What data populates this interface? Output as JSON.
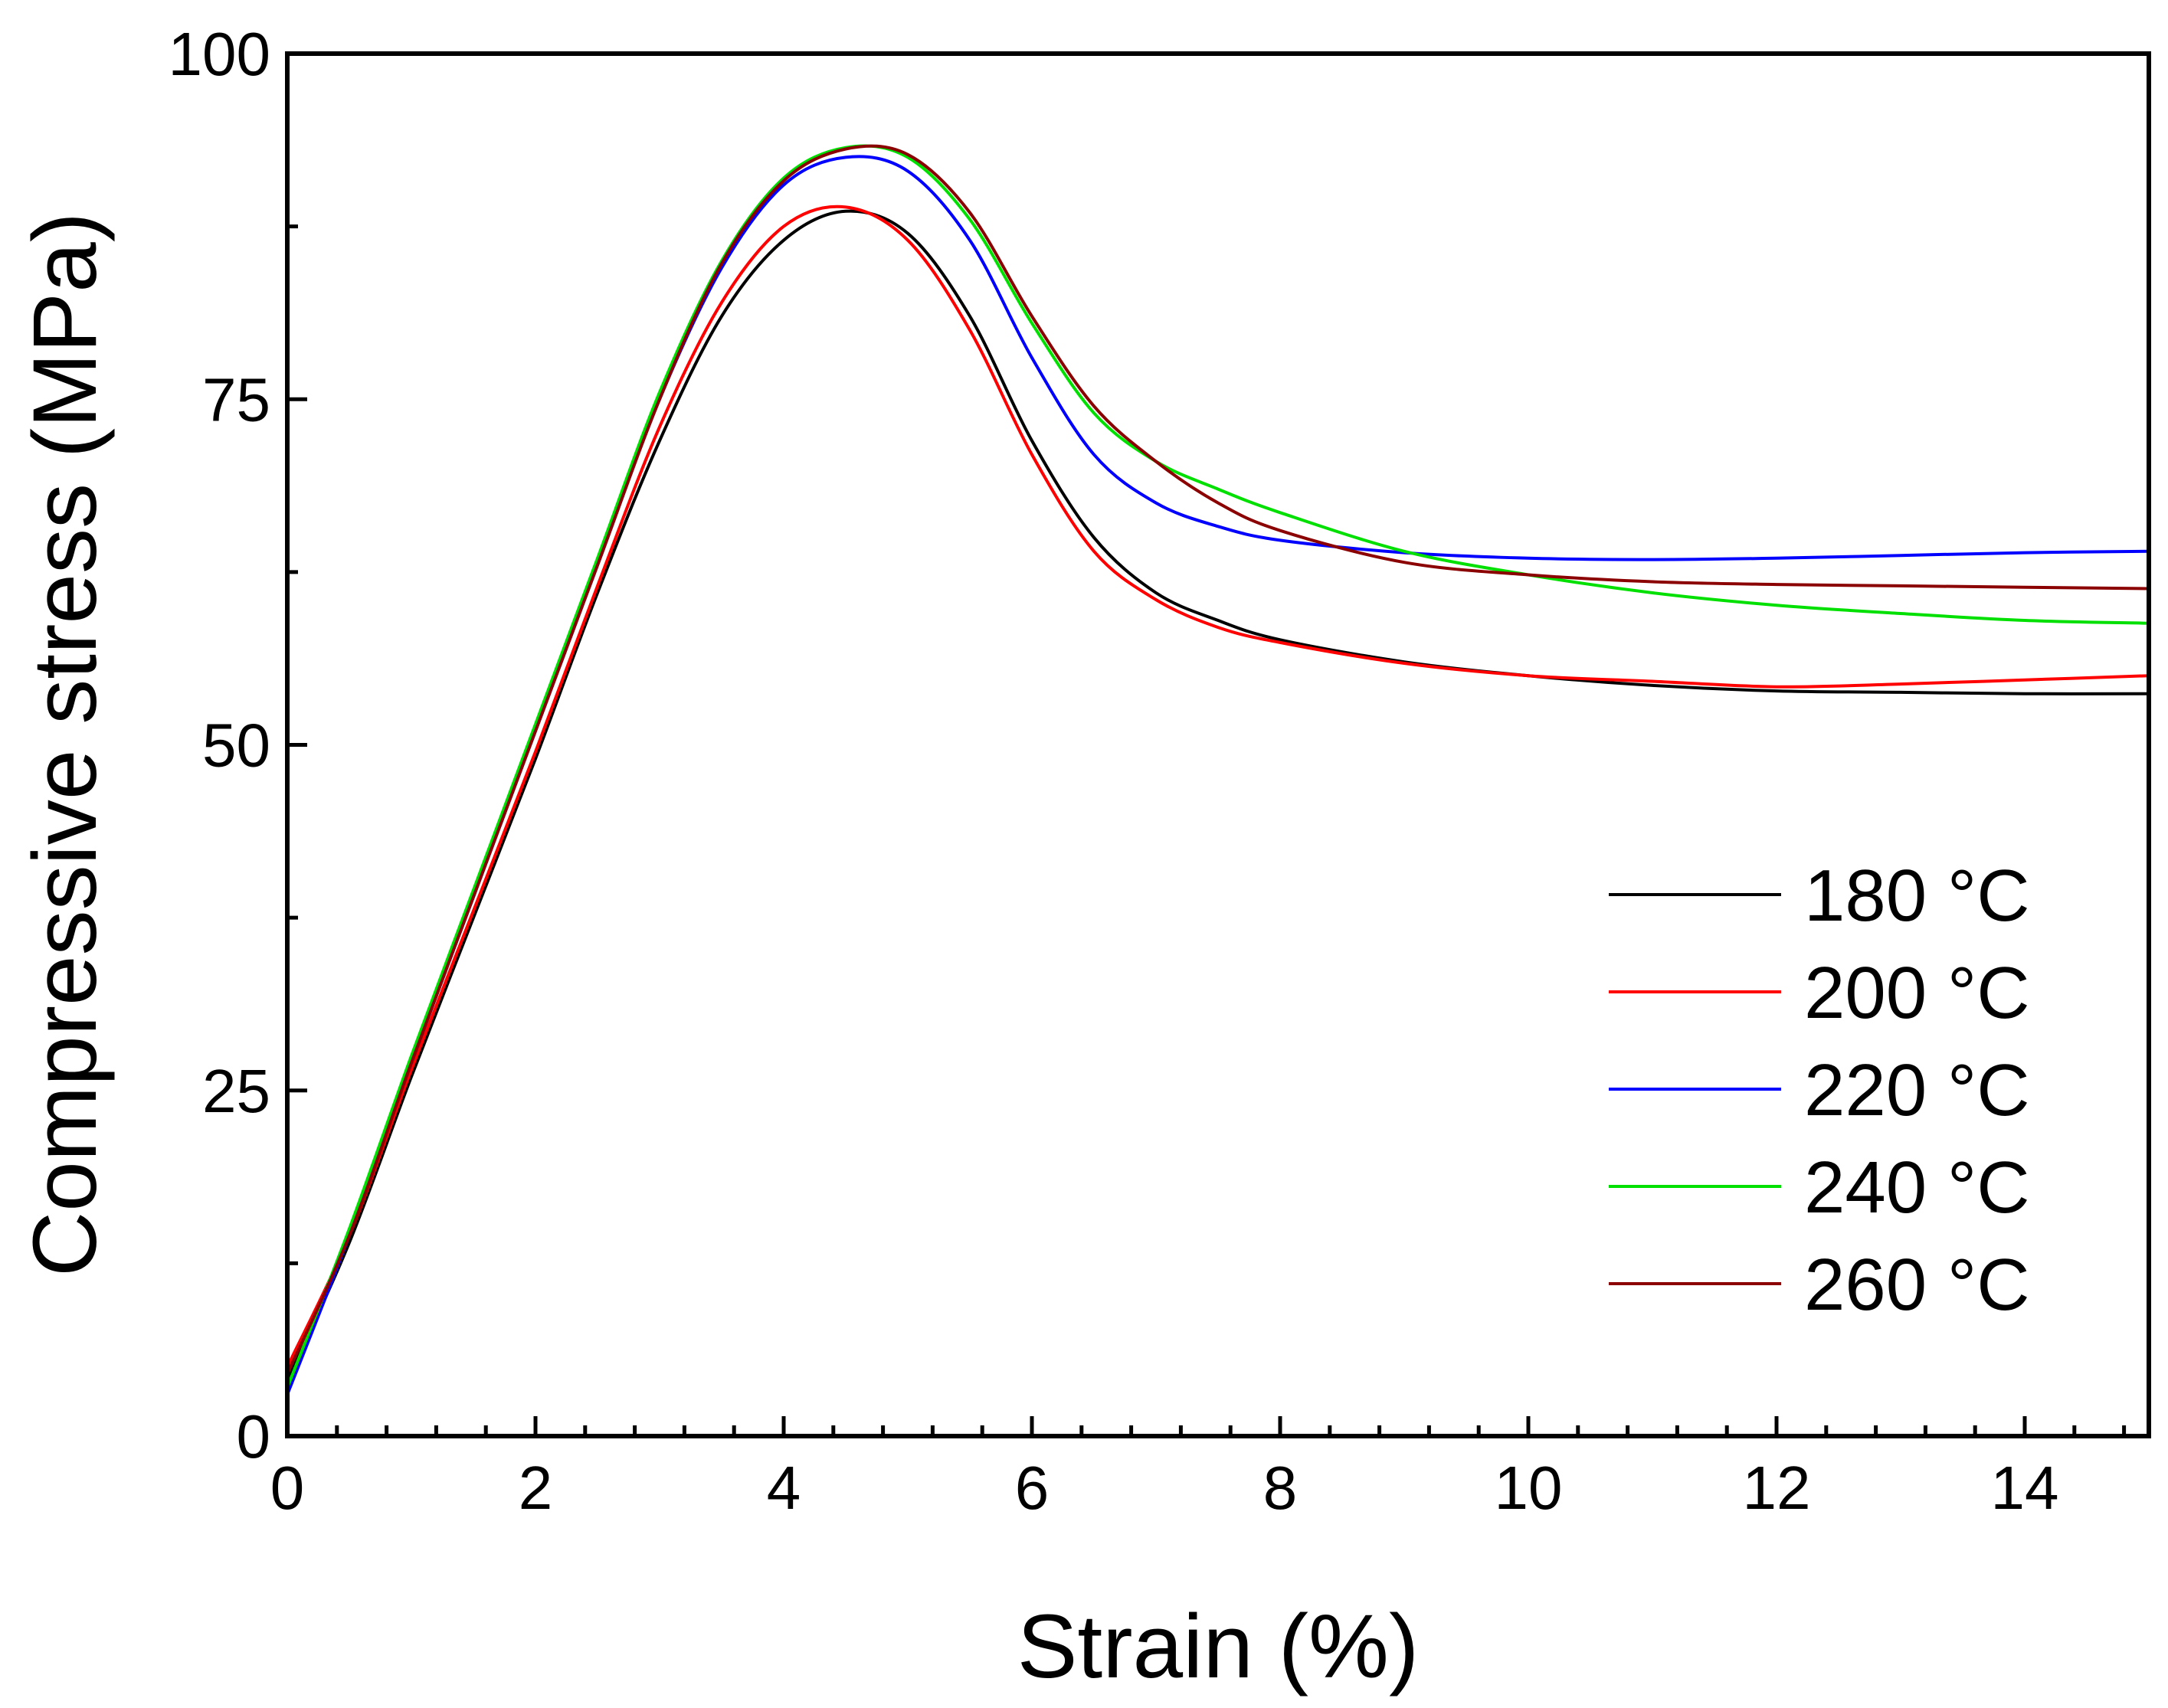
{
  "chart_data": {
    "type": "line",
    "title": "",
    "xlabel": "Strain (%)",
    "ylabel": "Compressive stress (MPa)",
    "xlim": [
      0,
      15
    ],
    "ylim": [
      0,
      100
    ],
    "xticks": [
      0,
      2,
      4,
      6,
      8,
      10,
      12,
      14
    ],
    "yticks": [
      0,
      25,
      50,
      75,
      100
    ],
    "grid": false,
    "legend_position": "center-right",
    "series": [
      {
        "name": "180 °C",
        "color": "#000000",
        "points": [
          [
            0,
            4
          ],
          [
            0.5,
            14
          ],
          [
            1,
            26
          ],
          [
            1.5,
            37.5
          ],
          [
            2,
            49
          ],
          [
            2.5,
            61
          ],
          [
            3,
            72
          ],
          [
            3.5,
            81
          ],
          [
            4,
            86.5
          ],
          [
            4.5,
            88.6
          ],
          [
            5,
            87
          ],
          [
            5.5,
            81
          ],
          [
            6,
            72
          ],
          [
            6.5,
            65
          ],
          [
            7,
            61
          ],
          [
            7.5,
            59
          ],
          [
            8,
            57.6
          ],
          [
            9,
            56
          ],
          [
            10,
            55
          ],
          [
            11,
            54.3
          ],
          [
            12,
            53.9
          ],
          [
            13,
            53.8
          ],
          [
            14,
            53.7
          ],
          [
            15,
            53.7
          ]
        ]
      },
      {
        "name": "200 °C",
        "color": "#ff0000",
        "points": [
          [
            0,
            5
          ],
          [
            0.5,
            14.5
          ],
          [
            1,
            26.5
          ],
          [
            1.5,
            38
          ],
          [
            2,
            49.5
          ],
          [
            2.5,
            61.5
          ],
          [
            3,
            73
          ],
          [
            3.5,
            82
          ],
          [
            4,
            87.5
          ],
          [
            4.5,
            88.9
          ],
          [
            5,
            86.5
          ],
          [
            5.5,
            80
          ],
          [
            6,
            71
          ],
          [
            6.5,
            64
          ],
          [
            7,
            60.5
          ],
          [
            7.5,
            58.5
          ],
          [
            8,
            57.4
          ],
          [
            9,
            55.9
          ],
          [
            10,
            55
          ],
          [
            11,
            54.6
          ],
          [
            12,
            54.2
          ],
          [
            13,
            54.4
          ],
          [
            14,
            54.7
          ],
          [
            15,
            55
          ]
        ]
      },
      {
        "name": "220 °C",
        "color": "#0000ff",
        "points": [
          [
            0,
            3
          ],
          [
            0.5,
            14.5
          ],
          [
            1,
            27
          ],
          [
            1.5,
            39
          ],
          [
            2,
            51
          ],
          [
            2.5,
            63
          ],
          [
            3,
            75
          ],
          [
            3.5,
            84.5
          ],
          [
            4,
            90.5
          ],
          [
            4.5,
            92.5
          ],
          [
            5,
            91.5
          ],
          [
            5.5,
            86.5
          ],
          [
            6,
            78
          ],
          [
            6.5,
            71
          ],
          [
            7,
            67.5
          ],
          [
            7.5,
            65.8
          ],
          [
            8,
            64.8
          ],
          [
            9,
            63.9
          ],
          [
            10,
            63.5
          ],
          [
            11,
            63.4
          ],
          [
            12,
            63.5
          ],
          [
            13,
            63.7
          ],
          [
            14,
            63.9
          ],
          [
            15,
            64
          ]
        ]
      },
      {
        "name": "240 °C",
        "color": "#00e000",
        "points": [
          [
            0,
            3.5
          ],
          [
            0.5,
            15
          ],
          [
            1,
            27.5
          ],
          [
            1.5,
            39.5
          ],
          [
            2,
            51.5
          ],
          [
            2.5,
            63.5
          ],
          [
            3,
            75.5
          ],
          [
            3.5,
            85
          ],
          [
            4,
            91
          ],
          [
            4.5,
            93.2
          ],
          [
            5,
            92.5
          ],
          [
            5.5,
            88
          ],
          [
            6,
            80.5
          ],
          [
            6.5,
            74
          ],
          [
            7,
            70.5
          ],
          [
            7.5,
            68.5
          ],
          [
            8,
            66.8
          ],
          [
            9,
            64
          ],
          [
            10,
            62.3
          ],
          [
            11,
            61
          ],
          [
            12,
            60.1
          ],
          [
            13,
            59.5
          ],
          [
            14,
            59
          ],
          [
            15,
            58.8
          ]
        ]
      },
      {
        "name": "260 °C",
        "color": "#8b0000",
        "points": [
          [
            0,
            4.5
          ],
          [
            0.5,
            14.5
          ],
          [
            1,
            27
          ],
          [
            1.5,
            39
          ],
          [
            2,
            51
          ],
          [
            2.5,
            63
          ],
          [
            3,
            75
          ],
          [
            3.5,
            84.8
          ],
          [
            4,
            90.8
          ],
          [
            4.5,
            93.1
          ],
          [
            5,
            92.7
          ],
          [
            5.5,
            88.5
          ],
          [
            6,
            81
          ],
          [
            6.5,
            74.5
          ],
          [
            7,
            70.5
          ],
          [
            7.5,
            67.5
          ],
          [
            8,
            65.5
          ],
          [
            9,
            63.2
          ],
          [
            10,
            62.3
          ],
          [
            11,
            61.8
          ],
          [
            12,
            61.6
          ],
          [
            13,
            61.5
          ],
          [
            14,
            61.4
          ],
          [
            15,
            61.3
          ]
        ]
      }
    ]
  }
}
